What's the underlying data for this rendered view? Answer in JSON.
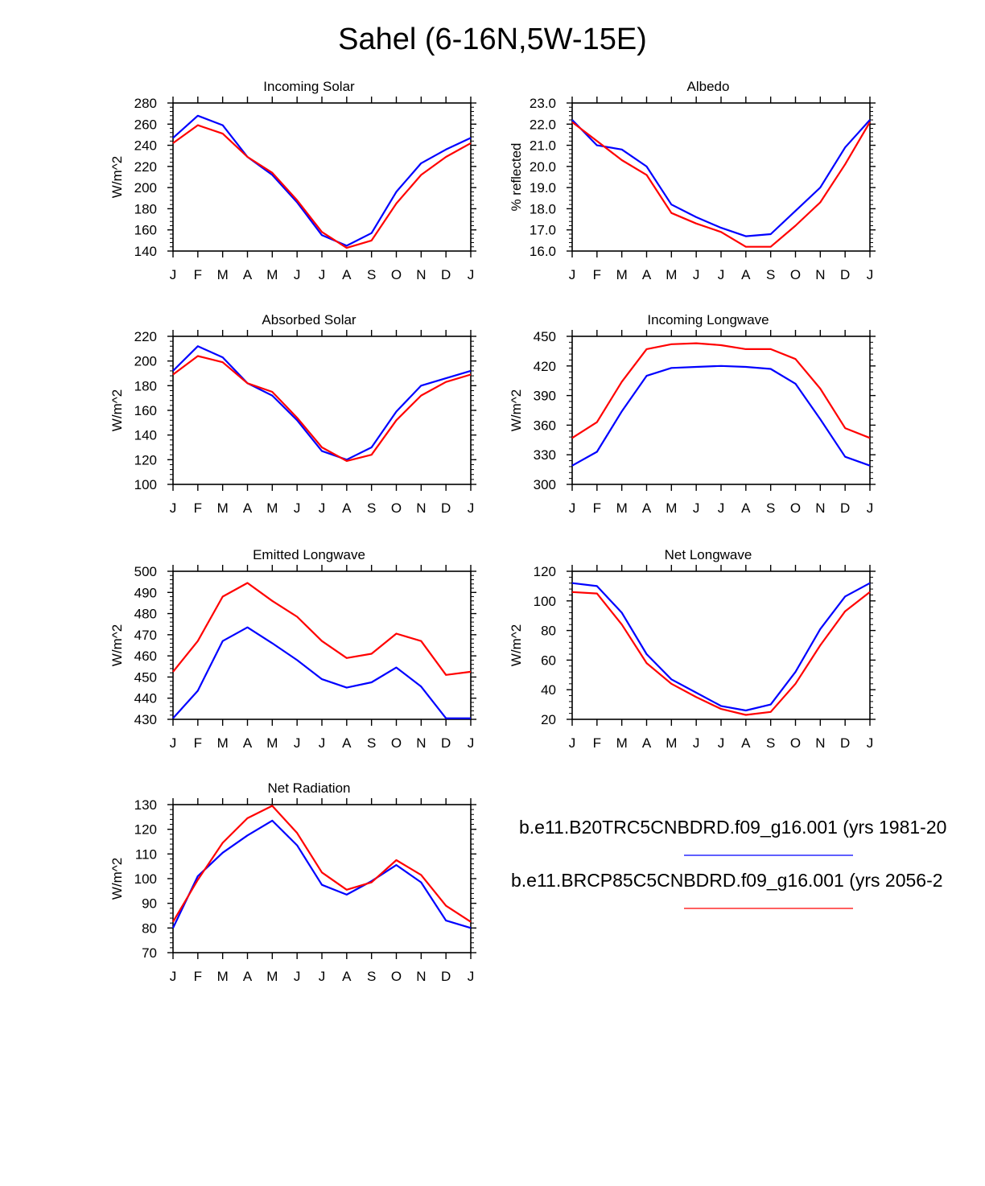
{
  "title": "Sahel (6-16N,5W-15E)",
  "colors": {
    "run1": "#0000ff",
    "run2": "#ff0000",
    "axis": "#000000"
  },
  "legend": {
    "entries": [
      {
        "label": "b.e11.B20TRC5CNBDRD.f09_g16.001 (yrs 1981-20",
        "color": "#0000ff"
      },
      {
        "label": "b.e11.BRCP85C5CNBDRD.f09_g16.001 (yrs 2056-2",
        "color": "#ff0000"
      }
    ]
  },
  "chart_data": [
    {
      "type": "line",
      "title": "Incoming Solar",
      "ylabel": "W/m^2",
      "ylim": [
        140,
        280
      ],
      "yticks": [
        "140",
        "160",
        "180",
        "200",
        "220",
        "240",
        "260",
        "280"
      ],
      "categories": [
        "J",
        "F",
        "M",
        "A",
        "M",
        "J",
        "J",
        "A",
        "S",
        "O",
        "N",
        "D",
        "J"
      ],
      "series": [
        {
          "name": "b.e11.B20TRC5CNBDRD.f09_g16.001",
          "values": [
            247,
            268,
            259,
            229,
            212,
            186,
            155,
            145,
            157,
            196,
            223,
            236,
            247
          ]
        },
        {
          "name": "b.e11.BRCP85C5CNBDRD.f09_g16.001",
          "values": [
            242,
            259,
            251,
            229,
            214,
            188,
            158,
            143,
            150,
            185,
            212,
            229,
            242
          ]
        }
      ]
    },
    {
      "type": "line",
      "title": "Albedo",
      "ylabel": "% reflected",
      "ylim": [
        16.0,
        23.0
      ],
      "yticks": [
        "16.0",
        "17.0",
        "18.0",
        "19.0",
        "20.0",
        "21.0",
        "22.0",
        "23.0"
      ],
      "categories": [
        "J",
        "F",
        "M",
        "A",
        "M",
        "J",
        "J",
        "A",
        "S",
        "O",
        "N",
        "D",
        "J"
      ],
      "series": [
        {
          "name": "b.e11.B20TRC5CNBDRD.f09_g16.001",
          "values": [
            22.2,
            21.0,
            20.8,
            20.0,
            18.2,
            17.6,
            17.1,
            16.7,
            16.8,
            17.9,
            19.0,
            20.9,
            22.2
          ]
        },
        {
          "name": "b.e11.BRCP85C5CNBDRD.f09_g16.001",
          "values": [
            22.1,
            21.2,
            20.3,
            19.6,
            17.8,
            17.3,
            16.9,
            16.2,
            16.2,
            17.2,
            18.3,
            20.1,
            22.1
          ]
        }
      ]
    },
    {
      "type": "line",
      "title": "Absorbed Solar",
      "ylabel": "W/m^2",
      "ylim": [
        100,
        220
      ],
      "yticks": [
        "100",
        "120",
        "140",
        "160",
        "180",
        "200",
        "220"
      ],
      "categories": [
        "J",
        "F",
        "M",
        "A",
        "M",
        "J",
        "J",
        "A",
        "S",
        "O",
        "N",
        "D",
        "J"
      ],
      "series": [
        {
          "name": "b.e11.B20TRC5CNBDRD.f09_g16.001",
          "values": [
            192,
            212,
            203,
            182,
            172,
            152,
            127,
            120,
            130,
            159,
            180,
            186,
            192
          ]
        },
        {
          "name": "b.e11.BRCP85C5CNBDRD.f09_g16.001",
          "values": [
            189,
            204,
            199,
            182,
            175,
            154,
            130,
            119,
            124,
            152,
            172,
            183,
            189
          ]
        }
      ]
    },
    {
      "type": "line",
      "title": "Incoming Longwave",
      "ylabel": "W/m^2",
      "ylim": [
        300,
        450
      ],
      "yticks": [
        "300",
        "330",
        "360",
        "390",
        "420",
        "450"
      ],
      "categories": [
        "J",
        "F",
        "M",
        "A",
        "M",
        "J",
        "J",
        "A",
        "S",
        "O",
        "N",
        "D",
        "J"
      ],
      "series": [
        {
          "name": "b.e11.B20TRC5CNBDRD.f09_g16.001",
          "values": [
            319,
            333,
            374,
            410,
            418,
            419,
            420,
            419,
            417,
            402,
            366,
            328,
            319
          ]
        },
        {
          "name": "b.e11.BRCP85C5CNBDRD.f09_g16.001",
          "values": [
            347,
            363,
            404,
            437,
            442,
            443,
            441,
            437,
            437,
            427,
            397,
            357,
            347
          ]
        }
      ]
    },
    {
      "type": "line",
      "title": "Emitted Longwave",
      "ylabel": "W/m^2",
      "ylim": [
        430,
        500
      ],
      "yticks": [
        "430",
        "440",
        "450",
        "460",
        "470",
        "480",
        "490",
        "500"
      ],
      "categories": [
        "J",
        "F",
        "M",
        "A",
        "M",
        "J",
        "J",
        "A",
        "S",
        "O",
        "N",
        "D",
        "J"
      ],
      "series": [
        {
          "name": "b.e11.B20TRC5CNBDRD.f09_g16.001",
          "values": [
            430.5,
            443.5,
            467,
            473.5,
            466,
            458,
            449,
            445,
            447.5,
            454.5,
            445.5,
            430.5,
            430.5
          ]
        },
        {
          "name": "b.e11.BRCP85C5CNBDRD.f09_g16.001",
          "values": [
            452.5,
            467,
            488,
            494.5,
            486,
            478.5,
            467,
            459,
            461,
            470.5,
            467,
            451,
            452.5
          ]
        }
      ]
    },
    {
      "type": "line",
      "title": "Net Longwave",
      "ylabel": "W/m^2",
      "ylim": [
        20,
        120
      ],
      "yticks": [
        "20",
        "40",
        "60",
        "80",
        "100",
        "120"
      ],
      "categories": [
        "J",
        "F",
        "M",
        "A",
        "M",
        "J",
        "J",
        "A",
        "S",
        "O",
        "N",
        "D",
        "J"
      ],
      "series": [
        {
          "name": "b.e11.B20TRC5CNBDRD.f09_g16.001",
          "values": [
            112,
            110,
            92,
            64,
            47,
            38,
            29,
            26,
            30,
            52,
            81,
            103,
            112
          ]
        },
        {
          "name": "b.e11.BRCP85C5CNBDRD.f09_g16.001",
          "values": [
            106,
            105,
            84,
            58,
            44,
            35,
            27,
            23,
            25,
            44,
            70,
            93,
            106
          ]
        }
      ]
    },
    {
      "type": "line",
      "title": "Net Radiation",
      "ylabel": "W/m^2",
      "ylim": [
        70,
        130
      ],
      "yticks": [
        "70",
        "80",
        "90",
        "100",
        "110",
        "120",
        "130"
      ],
      "categories": [
        "J",
        "F",
        "M",
        "A",
        "M",
        "J",
        "J",
        "A",
        "S",
        "O",
        "N",
        "D",
        "J"
      ],
      "series": [
        {
          "name": "b.e11.B20TRC5CNBDRD.f09_g16.001",
          "values": [
            80,
            101,
            110.5,
            117.5,
            123.5,
            113.5,
            97.5,
            93.5,
            99,
            105.5,
            98.5,
            83,
            80
          ]
        },
        {
          "name": "b.e11.BRCP85C5CNBDRD.f09_g16.001",
          "values": [
            82.5,
            99.5,
            114.5,
            124.5,
            129.5,
            118.5,
            102.5,
            95.5,
            98.5,
            107.5,
            101.5,
            89,
            82.5
          ]
        }
      ]
    }
  ]
}
